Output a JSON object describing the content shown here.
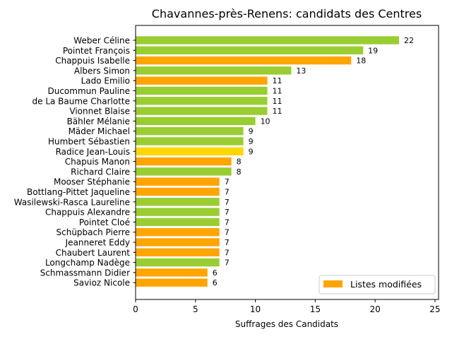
{
  "chart_data": {
    "type": "bar",
    "orientation": "horizontal",
    "title": "Chavannes-près-Renens: candidats des Centres",
    "xlabel": "Suffrages des Candidats",
    "ylabel": "",
    "xlim": [
      0,
      25.3
    ],
    "xticks": [
      0,
      5,
      10,
      15,
      20,
      25
    ],
    "grid": false,
    "legend": {
      "position": "lower-right",
      "entries": [
        {
          "label": "Listes modifiées",
          "color": "#ffa500"
        }
      ]
    },
    "categories": [
      "Weber Céline",
      "Pointet François",
      "Chappuis Isabelle",
      "Albers Simon",
      "Lado Emilio",
      "Ducommun Pauline",
      "de La Baume Charlotte",
      "Vionnet Blaise",
      "Bähler Mélanie",
      "Mäder Michael",
      "Humbert Sébastien",
      "Radice Jean-Louis",
      "Chapuis Manon",
      "Richard Claire",
      "Mooser Stéphanie",
      "Bottlang-Pittet Jaqueline",
      "Wasilewski-Rasca Laureline",
      "Chappuis Alexandre",
      "Pointet Cloé",
      "Schüpbach Pierre",
      "Jeanneret Eddy",
      "Chaubert Laurent",
      "Longchamp Nadège",
      "Schmassmann Didier",
      "Savioz Nicole"
    ],
    "values": [
      22,
      19,
      18,
      13,
      11,
      11,
      11,
      11,
      10,
      9,
      9,
      9,
      8,
      8,
      7,
      7,
      7,
      7,
      7,
      7,
      7,
      7,
      7,
      6,
      6
    ],
    "colors": [
      "#9acd32",
      "#9acd32",
      "#ffa500",
      "#9acd32",
      "#ffa500",
      "#9acd32",
      "#9acd32",
      "#9acd32",
      "#9acd32",
      "#9acd32",
      "#9acd32",
      "#ffd700",
      "#ffa500",
      "#9acd32",
      "#ffa500",
      "#ffa500",
      "#9acd32",
      "#9acd32",
      "#9acd32",
      "#ffa500",
      "#ffa500",
      "#ffa500",
      "#9acd32",
      "#ffa500",
      "#ffa500"
    ]
  }
}
